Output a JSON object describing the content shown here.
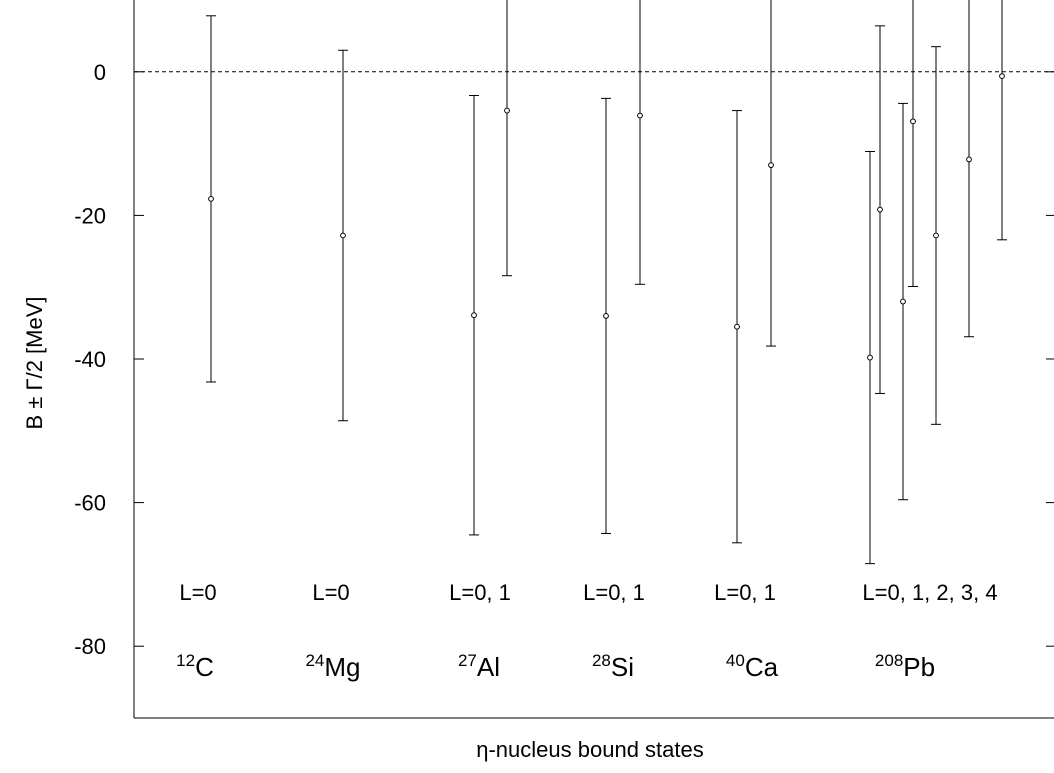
{
  "chart_data": {
    "type": "scatter",
    "title": "",
    "xlabel": "η-nucleus bound states",
    "ylabel": "B ± Γ/2  [MeV]",
    "ylim": [
      -90,
      10
    ],
    "yticks": [
      0,
      -20,
      -40,
      -60,
      -80
    ],
    "ytick_labels": [
      "0",
      "-20",
      "-40",
      "-60",
      "-80"
    ],
    "zero_line": true,
    "grid": false,
    "series": [
      {
        "points": [
          {
            "nucleus": "12C",
            "L": 0,
            "B": -17.7,
            "err": 25.5
          },
          {
            "nucleus": "24Mg",
            "L": 0,
            "B": -22.8,
            "err": 25.8
          },
          {
            "nucleus": "27Al",
            "L": 0,
            "B": -33.9,
            "err": 30.6
          },
          {
            "nucleus": "27Al",
            "L": 1,
            "B": -5.4,
            "err": 23.0
          },
          {
            "nucleus": "28Si",
            "L": 0,
            "B": -34.0,
            "err": 30.3
          },
          {
            "nucleus": "28Si",
            "L": 1,
            "B": -6.1,
            "err": 23.5
          },
          {
            "nucleus": "40Ca",
            "L": 0,
            "B": -35.5,
            "err": 30.1
          },
          {
            "nucleus": "40Ca",
            "L": 1,
            "B": -13.0,
            "err": 25.2
          },
          {
            "nucleus": "208Pb",
            "L": 0,
            "B": -39.8,
            "err": 28.7
          },
          {
            "nucleus": "208Pb",
            "L": 1,
            "B": -19.2,
            "err": 25.6
          },
          {
            "nucleus": "208Pb",
            "L": 1,
            "B": -32.0,
            "err": 27.6
          },
          {
            "nucleus": "208Pb",
            "L": 2,
            "B": -6.9,
            "err": 23.0
          },
          {
            "nucleus": "208Pb",
            "L": 2,
            "B": -22.8,
            "err": 26.3
          },
          {
            "nucleus": "208Pb",
            "L": 3,
            "B": -12.2,
            "err": 24.7
          },
          {
            "nucleus": "208Pb",
            "L": 4,
            "B": -0.6,
            "err": 22.8
          }
        ]
      }
    ],
    "annotations": [
      {
        "l": "L=0",
        "mass": "12",
        "sym": "C"
      },
      {
        "l": "L=0",
        "mass": "24",
        "sym": "Mg"
      },
      {
        "l": "L=0, 1",
        "mass": "27",
        "sym": "Al"
      },
      {
        "l": "L=0, 1",
        "mass": "28",
        "sym": "Si"
      },
      {
        "l": "L=0, 1",
        "mass": "40",
        "sym": "Ca"
      },
      {
        "l": "L=0, 1, 2, 3, 4",
        "mass": "208",
        "sym": "Pb"
      }
    ]
  }
}
